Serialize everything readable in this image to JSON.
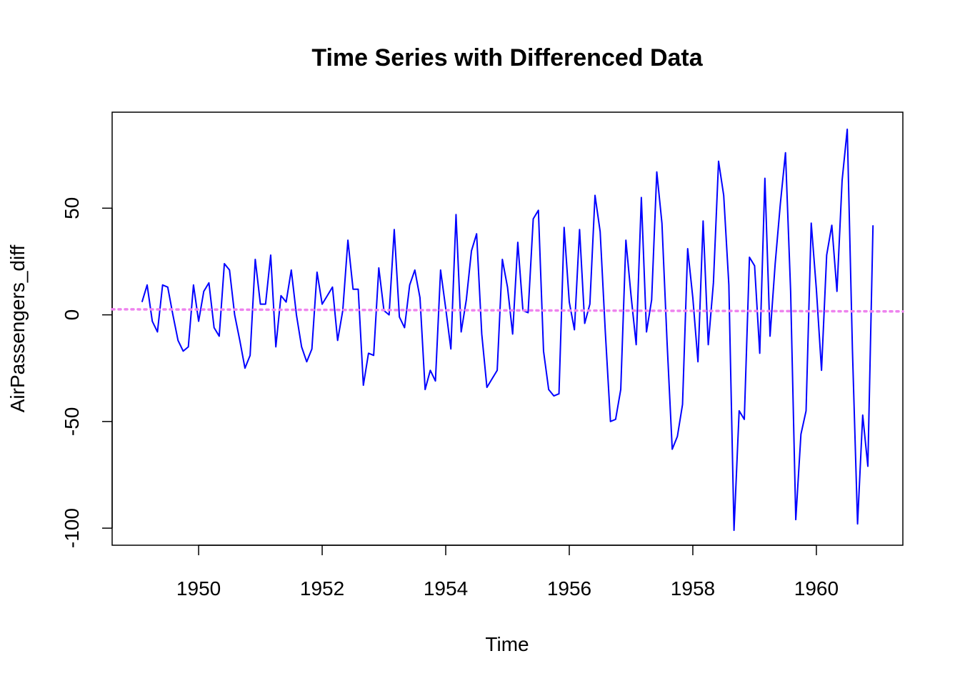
{
  "chart_data": {
    "type": "line",
    "title": "Time Series with Differenced Data",
    "xlabel": "Time",
    "ylabel": "AirPassengers_diff",
    "xlim": [
      1948.6,
      1961.4
    ],
    "ylim": [
      -108,
      95
    ],
    "x_ticks": [
      1950,
      1952,
      1954,
      1956,
      1958,
      1960
    ],
    "y_ticks": [
      -100,
      -50,
      0,
      50
    ],
    "x_tick_labels": [
      "1950",
      "1952",
      "1954",
      "1956",
      "1958",
      "1960"
    ],
    "y_tick_labels": [
      "-100",
      "-50",
      "0",
      "50"
    ],
    "start": 1949.0833,
    "frequency": 12,
    "series": [
      {
        "color": "#0000ff",
        "values": [
          6,
          14,
          -3,
          -8,
          14,
          13,
          0,
          -12,
          -17,
          -15,
          14,
          -3,
          11,
          15,
          -6,
          -10,
          24,
          21,
          0,
          -12,
          -25,
          -19,
          26,
          5,
          5,
          28,
          -15,
          9,
          6,
          21,
          0,
          -15,
          -22,
          -16,
          20,
          5,
          9,
          13,
          -12,
          2,
          35,
          12,
          12,
          -33,
          -18,
          -19,
          22,
          2,
          0,
          40,
          -1,
          -6,
          14,
          21,
          8,
          -35,
          -26,
          -31,
          21,
          3,
          -16,
          47,
          -8,
          7,
          30,
          38,
          -9,
          -34,
          -30,
          -26,
          26,
          13,
          -9,
          34,
          2,
          1,
          45,
          49,
          -17,
          -35,
          -38,
          -37,
          41,
          6,
          -7,
          40,
          -4,
          5,
          56,
          39,
          -8,
          -50,
          -49,
          -35,
          35,
          9,
          -14,
          55,
          -8,
          7,
          67,
          43,
          -13,
          -63,
          -57,
          -42,
          31,
          8,
          -22,
          44,
          -14,
          15,
          72,
          56,
          14,
          -101,
          -45,
          -49,
          27,
          23,
          -18,
          64,
          -10,
          24,
          52,
          76,
          11,
          -96,
          -56,
          -45,
          43,
          12,
          -26,
          28,
          42,
          11,
          63,
          87,
          -16,
          -98,
          -47,
          -71,
          42
        ]
      }
    ],
    "trend": {
      "color": "#ee82ee",
      "style": "dotted",
      "y_start": 2.6,
      "y_end": 1.6
    }
  }
}
